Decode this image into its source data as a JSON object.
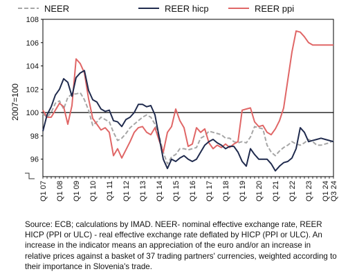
{
  "chart_data": {
    "type": "line",
    "title": "",
    "xlabel": "",
    "ylabel": "2007=100",
    "ylim": [
      94.5,
      108
    ],
    "yticks": [
      96,
      98,
      100,
      102,
      104,
      106,
      108
    ],
    "reference_line": 100,
    "grid": false,
    "legend_position": "top",
    "x_start": "Q1 2007",
    "x_end": "Q3 2024",
    "xtick_labels": [
      "Q1 07",
      "Q1 08",
      "Q1 09",
      "Q1 10",
      "Q1 11",
      "Q1 12",
      "Q1 13",
      "Q1 14",
      "Q1 15",
      "Q1 16",
      "Q1 17",
      "Q1 18",
      "Q1 19",
      "Q1 20",
      "Q1 21",
      "Q1 22",
      "Q1 23",
      "Q1 24",
      "Q3 24"
    ],
    "series": [
      {
        "name": "NEER",
        "color": "#a6a6a6",
        "dash": true,
        "values": [
          99.9,
          99.6,
          100.0,
          100.8,
          101.0,
          100.3,
          101.3,
          101.6,
          101.6,
          101.7,
          101.1,
          100.2,
          98.9,
          99.2,
          99.6,
          99.4,
          99.2,
          98.3,
          97.6,
          97.8,
          98.2,
          98.7,
          99.0,
          99.3,
          99.6,
          99.8,
          99.6,
          99.0,
          98.0,
          96.6,
          95.6,
          96.2,
          96.4,
          96.9,
          96.9,
          96.8,
          96.9,
          97.0,
          97.8,
          98.0,
          98.4,
          98.3,
          98.2,
          98.1,
          97.8,
          97.8,
          97.5,
          97.4,
          97.5,
          97.4,
          97.9,
          98.8,
          98.7,
          98.6,
          97.2,
          96.6,
          96.3,
          96.7,
          97.0,
          97.2,
          97.5,
          97.3,
          97.2,
          97.4,
          97.7,
          97.5,
          97.2,
          97.2,
          97.3,
          97.4,
          97.6
        ]
      },
      {
        "name": "REER hicp",
        "color": "#1f2a4d",
        "dash": false,
        "values": [
          98.4,
          99.8,
          100.5,
          101.5,
          102.0,
          102.9,
          102.6,
          101.4,
          103.0,
          103.4,
          103.6,
          101.9,
          101.1,
          100.9,
          100.3,
          100.1,
          100.2,
          99.3,
          99.2,
          98.8,
          99.4,
          99.6,
          100.0,
          100.7,
          100.7,
          100.5,
          100.6,
          99.8,
          97.9,
          96.0,
          95.2,
          96.0,
          95.8,
          96.1,
          96.3,
          96.0,
          95.8,
          96.0,
          96.6,
          97.2,
          97.5,
          97.7,
          97.4,
          97.2,
          96.9,
          97.1,
          97.1,
          96.6,
          95.8,
          95.4,
          96.9,
          96.4,
          96.0,
          96.0,
          96.0,
          95.6,
          95.0,
          95.4,
          95.7,
          95.8,
          96.1,
          96.9,
          98.7,
          98.3,
          97.5,
          97.6,
          97.7,
          97.8,
          97.7,
          97.6,
          97.5
        ]
      },
      {
        "name": "REER ppi",
        "color": "#e06666",
        "dash": false,
        "values": [
          100.2,
          99.6,
          99.6,
          100.2,
          100.8,
          100.5,
          99.0,
          100.6,
          104.6,
          104.2,
          103.4,
          101.2,
          99.5,
          99.0,
          98.5,
          98.7,
          98.3,
          96.3,
          96.9,
          96.1,
          96.8,
          97.5,
          98.3,
          98.7,
          98.8,
          98.3,
          98.1,
          98.7,
          97.6,
          96.6,
          98.3,
          98.8,
          100.3,
          99.3,
          98.7,
          97.1,
          97.3,
          98.7,
          98.3,
          98.6,
          97.4,
          96.9,
          97.2,
          97.0,
          97.3,
          97.0,
          97.3,
          97.5,
          100.2,
          100.3,
          100.4,
          99.2,
          98.8,
          98.9,
          98.3,
          98.1,
          98.6,
          99.3,
          100.4,
          102.8,
          105.2,
          107.0,
          106.9,
          106.5,
          106.0,
          105.8,
          105.8,
          105.8,
          105.8,
          105.8,
          105.8
        ]
      }
    ]
  },
  "source_text": "Source: ECB; calculations by IMAD. NEER- nominal effective exchange rate, REER HICP (PPI or ULC) - real effective exchange rate deflated by HICP (PPI or ULC). An increase in the indicator means an appreciation of the euro and/or an increase in relative prices against a basket of 37 trading partners' currencies, weighted according to their importance in Slovenia's trade."
}
